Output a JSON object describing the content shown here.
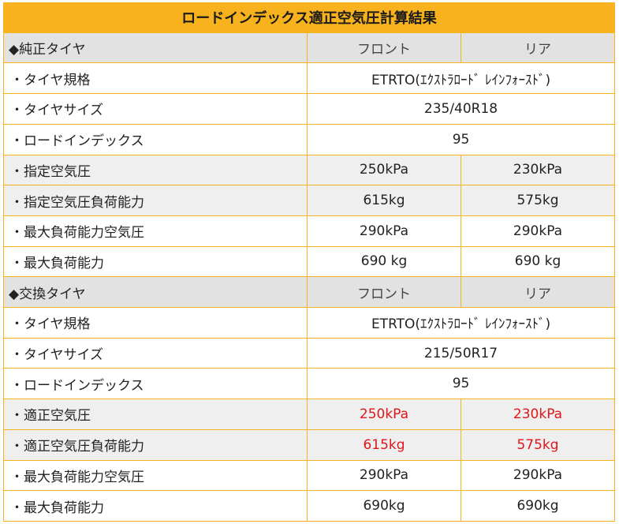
{
  "title": "ロードインデックス適正空気圧計算結果",
  "colors": {
    "header_orange": "#f7b21d",
    "border": "#f5b321",
    "section_gray": "#e2e2e2",
    "alt_gray": "#efefef",
    "highlight_red": "#e0161b"
  },
  "oem": {
    "header": {
      "label": "◆純正タイヤ",
      "front": "フロント",
      "rear": "リア"
    },
    "rows": {
      "standard": {
        "label": "・タイヤ規格",
        "value": "ETRTO(ｴｸｽﾄﾗﾛｰﾄﾞ ﾚｲﾝﾌｫｰｽﾄﾞ)"
      },
      "size": {
        "label": "・タイヤサイズ",
        "value": "235/40R18"
      },
      "load_index": {
        "label": "・ロードインデックス",
        "value": "95"
      },
      "pressure": {
        "label": "・指定空気圧",
        "front": "250kPa",
        "rear": "230kPa"
      },
      "pressure_load": {
        "label": "・指定空気圧負荷能力",
        "front": "615kg",
        "rear": "575kg"
      },
      "max_load_pressure": {
        "label": "・最大負荷能力空気圧",
        "front": "290kPa",
        "rear": "290kPa"
      },
      "max_load": {
        "label": "・最大負荷能力",
        "front": "690 kg",
        "rear": "690 kg"
      }
    }
  },
  "replacement": {
    "header": {
      "label": "◆交換タイヤ",
      "front": "フロント",
      "rear": "リア"
    },
    "rows": {
      "standard": {
        "label": "・タイヤ規格",
        "value": "ETRTO(ｴｸｽﾄﾗﾛｰﾄﾞ ﾚｲﾝﾌｫｰｽﾄﾞ)"
      },
      "size": {
        "label": "・タイヤサイズ",
        "value": "215/50R17"
      },
      "load_index": {
        "label": "・ロードインデックス",
        "value": "95"
      },
      "pressure": {
        "label": "・適正空気圧",
        "front": "250kPa",
        "rear": "230kPa"
      },
      "pressure_load": {
        "label": "・適正空気圧負荷能力",
        "front": "615kg",
        "rear": "575kg"
      },
      "max_load_pressure": {
        "label": "・最大負荷能力空気圧",
        "front": "290kPa",
        "rear": "290kPa"
      },
      "max_load": {
        "label": "・最大負荷能力",
        "front": "690kg",
        "rear": "690kg"
      }
    }
  }
}
